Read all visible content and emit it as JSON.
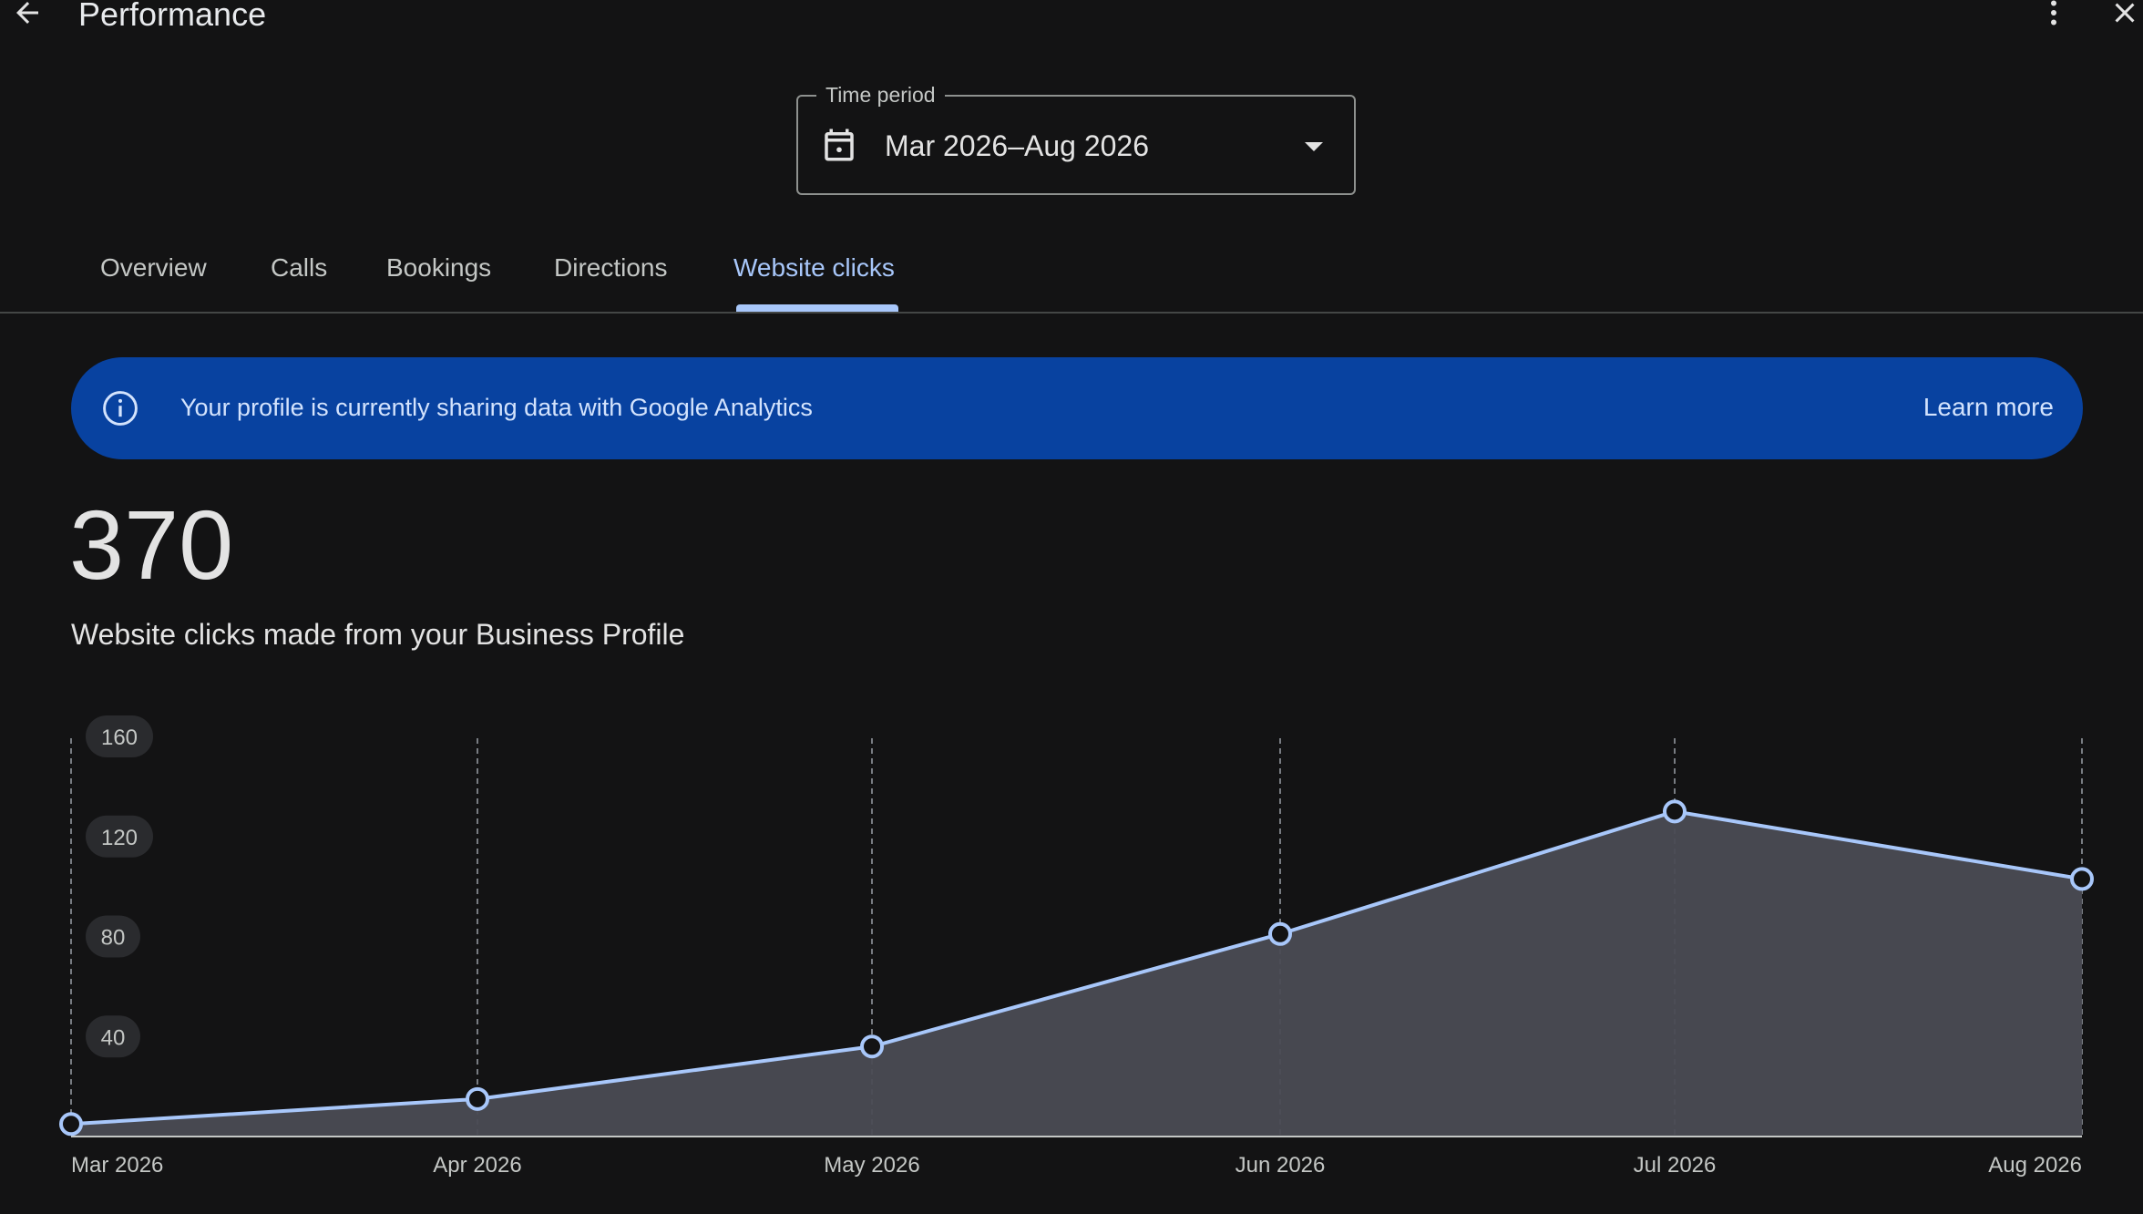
{
  "header": {
    "title": "Performance",
    "back_icon": "arrow-back-icon",
    "more_icon": "more-vert-icon",
    "close_icon": "close-icon"
  },
  "time_period": {
    "label": "Time period",
    "value": "Mar 2026–Aug 2026",
    "icon": "calendar-icon"
  },
  "tabs": [
    {
      "label": "Overview"
    },
    {
      "label": "Calls"
    },
    {
      "label": "Bookings"
    },
    {
      "label": "Directions"
    },
    {
      "label": "Website clicks",
      "active": true
    }
  ],
  "banner": {
    "text": "Your profile is currently sharing data with Google Analytics",
    "link": "Learn more",
    "icon": "info-icon"
  },
  "summary": {
    "total": "370",
    "description": "Website clicks made from your Business Profile"
  },
  "colors": {
    "background": "#131314",
    "accent": "#a8c7fa",
    "banner": "#0842a0",
    "area_fill": "#4a4b53"
  },
  "chart_data": {
    "type": "area",
    "x": [
      "Mar 2026",
      "Apr 2026",
      "May 2026",
      "Jun 2026",
      "Jul 2026",
      "Aug 2026"
    ],
    "values": [
      5,
      15,
      36,
      81,
      130,
      103
    ],
    "y_ticks": [
      "40",
      "80",
      "120",
      "160"
    ],
    "ylim": [
      0,
      160
    ],
    "grid": "vertical-dashed"
  }
}
